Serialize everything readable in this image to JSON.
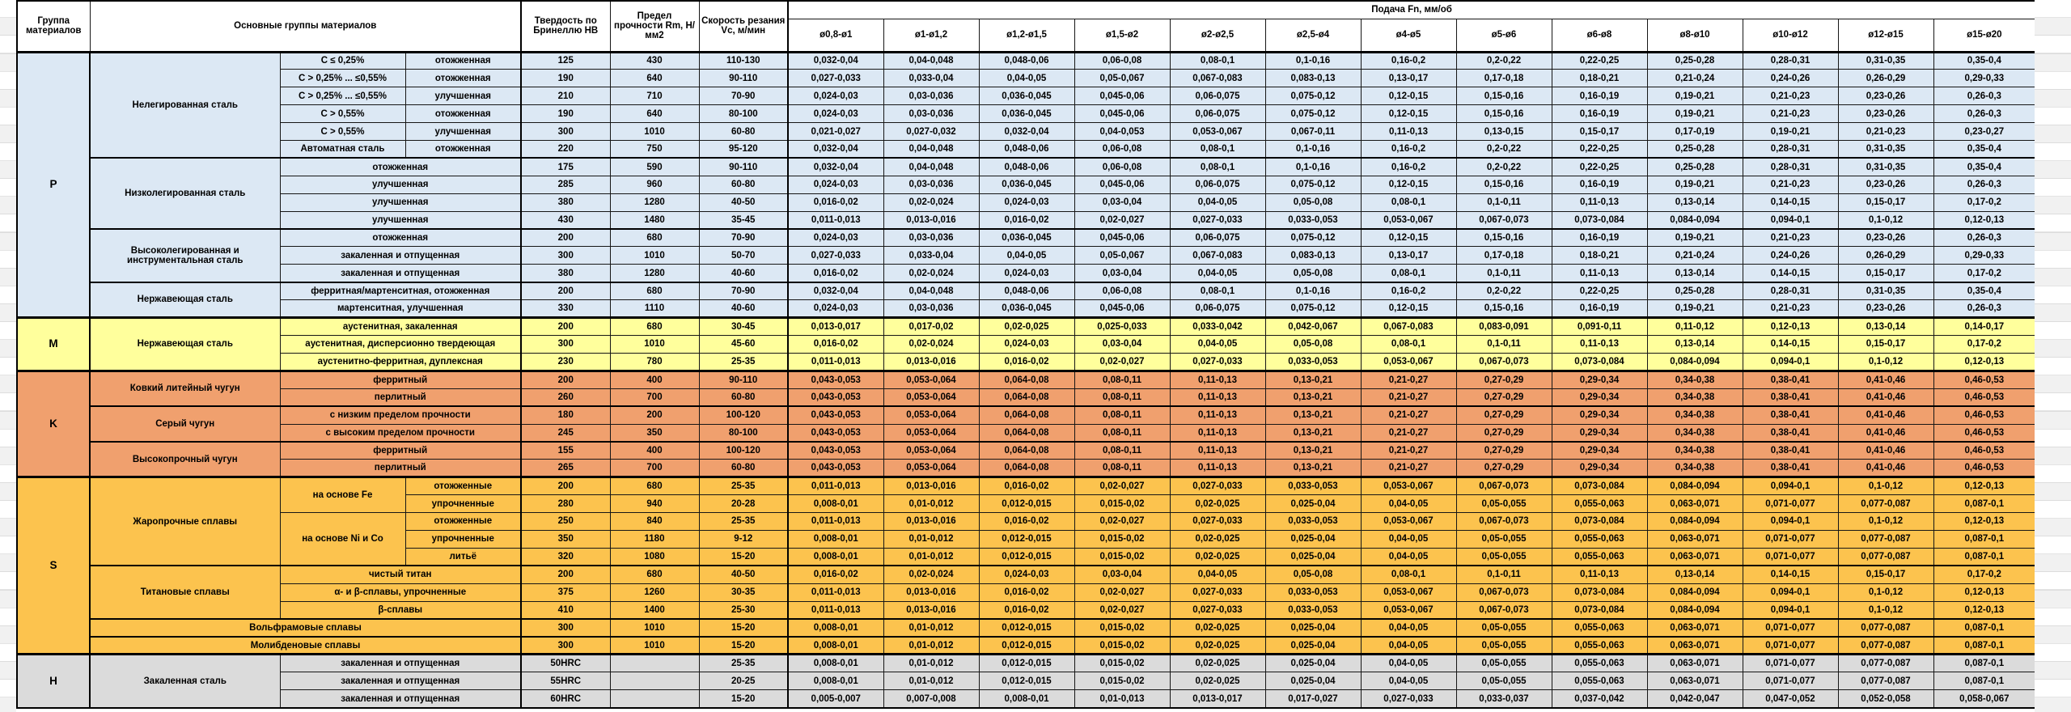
{
  "header": {
    "col_group": "Группа материалов",
    "col_main": "Основные группы материалов",
    "col_hardness": "Твердость по Бринеллю НВ",
    "col_strength": "Предел прочности Rm, Н/мм2",
    "col_speed": "Скорость резания Vc, м/мин",
    "feed_title": "Подача Fn, мм/об",
    "feed_cols": [
      "ø0,8-ø1",
      "ø1-ø1,2",
      "ø1,2-ø1,5",
      "ø1,5-ø2",
      "ø2-ø2,5",
      "ø2,5-ø4",
      "ø4-ø5",
      "ø5-ø6",
      "ø6-ø8",
      "ø8-ø10",
      "ø10-ø12",
      "ø12-ø15",
      "ø15-ø20"
    ]
  },
  "colors": {
    "P": "#DCE8F4",
    "M": "#FFFF9C",
    "K": "#F0A06E",
    "S": "#FCC34E",
    "H": "#DBDBDB",
    "grid": "#000000",
    "header_bg": "#FFFFFF"
  },
  "feed_patterns": {
    "A": [
      "0,032-0,04",
      "0,04-0,048",
      "0,048-0,06",
      "0,06-0,08",
      "0,08-0,1",
      "0,1-0,16",
      "0,16-0,2",
      "0,2-0,22",
      "0,22-0,25",
      "0,25-0,28",
      "0,28-0,31",
      "0,31-0,35",
      "0,35-0,4"
    ],
    "B": [
      "0,027-0,033",
      "0,033-0,04",
      "0,04-0,05",
      "0,05-0,067",
      "0,067-0,083",
      "0,083-0,13",
      "0,13-0,17",
      "0,17-0,18",
      "0,18-0,21",
      "0,21-0,24",
      "0,24-0,26",
      "0,26-0,29",
      "0,29-0,33"
    ],
    "C": [
      "0,024-0,03",
      "0,03-0,036",
      "0,036-0,045",
      "0,045-0,06",
      "0,06-0,075",
      "0,075-0,12",
      "0,12-0,15",
      "0,15-0,16",
      "0,16-0,19",
      "0,19-0,21",
      "0,21-0,23",
      "0,23-0,26",
      "0,26-0,3"
    ],
    "D": [
      "0,021-0,027",
      "0,027-0,032",
      "0,032-0,04",
      "0,04-0,053",
      "0,053-0,067",
      "0,067-0,11",
      "0,11-0,13",
      "0,13-0,15",
      "0,15-0,17",
      "0,17-0,19",
      "0,19-0,21",
      "0,21-0,23",
      "0,23-0,27"
    ],
    "E": [
      "0,016-0,02",
      "0,02-0,024",
      "0,024-0,03",
      "0,03-0,04",
      "0,04-0,05",
      "0,05-0,08",
      "0,08-0,1",
      "0,1-0,11",
      "0,11-0,13",
      "0,13-0,14",
      "0,14-0,15",
      "0,15-0,17",
      "0,17-0,2"
    ],
    "F": [
      "0,011-0,013",
      "0,013-0,016",
      "0,016-0,02",
      "0,02-0,027",
      "0,027-0,033",
      "0,033-0,053",
      "0,053-0,067",
      "0,067-0,073",
      "0,073-0,084",
      "0,084-0,094",
      "0,094-0,1",
      "0,1-0,12",
      "0,12-0,13"
    ],
    "G": [
      "0,013-0,017",
      "0,017-0,02",
      "0,02-0,025",
      "0,025-0,033",
      "0,033-0,042",
      "0,042-0,067",
      "0,067-0,083",
      "0,083-0,091",
      "0,091-0,11",
      "0,11-0,12",
      "0,12-0,13",
      "0,13-0,14",
      "0,14-0,17"
    ],
    "K": [
      "0,043-0,053",
      "0,053-0,064",
      "0,064-0,08",
      "0,08-0,11",
      "0,11-0,13",
      "0,13-0,21",
      "0,21-0,27",
      "0,27-0,29",
      "0,29-0,34",
      "0,34-0,38",
      "0,38-0,41",
      "0,41-0,46",
      "0,46-0,53"
    ],
    "S": [
      "0,008-0,01",
      "0,01-0,012",
      "0,012-0,015",
      "0,015-0,02",
      "0,02-0,025",
      "0,025-0,04",
      "0,04-0,05",
      "0,05-0,055",
      "0,055-0,063",
      "0,063-0,071",
      "0,071-0,077",
      "0,077-0,087",
      "0,087-0,1"
    ],
    "Z": [
      "0,005-0,007",
      "0,007-0,008",
      "0,008-0,01",
      "0,01-0,013",
      "0,013-0,017",
      "0,017-0,027",
      "0,027-0,033",
      "0,033-0,037",
      "0,037-0,042",
      "0,042-0,047",
      "0,047-0,052",
      "0,052-0,058",
      "0,058-0,067"
    ]
  },
  "groups": [
    {
      "letter": "P",
      "rows": [
        {
          "sec": true,
          "cells": [
            {
              "t": "Нелегированная сталь",
              "rs": 6
            },
            {
              "t": "С ≤ 0,25%"
            },
            {
              "t": "отожженная"
            }
          ],
          "hb": "125",
          "rm": "430",
          "vc": "110-130",
          "fp": "A"
        },
        {
          "cells": [
            {
              "t": "С > 0,25% ... ≤0,55%"
            },
            {
              "t": "отожженная"
            }
          ],
          "hb": "190",
          "rm": "640",
          "vc": "90-110",
          "fp": "B"
        },
        {
          "cells": [
            {
              "t": "С > 0,25% ... ≤0,55%"
            },
            {
              "t": "улучшенная"
            }
          ],
          "hb": "210",
          "rm": "710",
          "vc": "70-90",
          "fp": "C"
        },
        {
          "cells": [
            {
              "t": "С > 0,55%"
            },
            {
              "t": "отожженная"
            }
          ],
          "hb": "190",
          "rm": "640",
          "vc": "80-100",
          "fp": "C"
        },
        {
          "cells": [
            {
              "t": "С > 0,55%"
            },
            {
              "t": "улучшенная"
            }
          ],
          "hb": "300",
          "rm": "1010",
          "vc": "60-80",
          "fp": "D"
        },
        {
          "cells": [
            {
              "t": "Автоматная сталь"
            },
            {
              "t": "отожженная"
            }
          ],
          "hb": "220",
          "rm": "750",
          "vc": "95-120",
          "fp": "A"
        },
        {
          "sec": true,
          "cells": [
            {
              "t": "Низколегированная сталь",
              "rs": 4
            },
            {
              "t": "отожженная",
              "cs": 2
            }
          ],
          "hb": "175",
          "rm": "590",
          "vc": "90-110",
          "fp": "A"
        },
        {
          "cells": [
            {
              "t": "улучшенная",
              "cs": 2
            }
          ],
          "hb": "285",
          "rm": "960",
          "vc": "60-80",
          "fp": "C"
        },
        {
          "cells": [
            {
              "t": "улучшенная",
              "cs": 2
            }
          ],
          "hb": "380",
          "rm": "1280",
          "vc": "40-50",
          "fp": "E"
        },
        {
          "cells": [
            {
              "t": "улучшенная",
              "cs": 2
            }
          ],
          "hb": "430",
          "rm": "1480",
          "vc": "35-45",
          "fp": "F"
        },
        {
          "sec": true,
          "cells": [
            {
              "t": "Высоколегированная и инструментальная сталь",
              "rs": 3
            },
            {
              "t": "отожженная",
              "cs": 2
            }
          ],
          "hb": "200",
          "rm": "680",
          "vc": "70-90",
          "fp": "C"
        },
        {
          "cells": [
            {
              "t": "закаленная и отпущенная",
              "cs": 2
            }
          ],
          "hb": "300",
          "rm": "1010",
          "vc": "50-70",
          "fp": "B"
        },
        {
          "cells": [
            {
              "t": "закаленная и отпущенная",
              "cs": 2
            }
          ],
          "hb": "380",
          "rm": "1280",
          "vc": "40-60",
          "fp": "E"
        },
        {
          "sec": true,
          "cells": [
            {
              "t": "Нержавеющая сталь",
              "rs": 2
            },
            {
              "t": "ферритная/мартенситная, отожженная",
              "cs": 2
            }
          ],
          "hb": "200",
          "rm": "680",
          "vc": "70-90",
          "fp": "A"
        },
        {
          "cells": [
            {
              "t": "мартенситная, улучшенная",
              "cs": 2
            }
          ],
          "hb": "330",
          "rm": "1110",
          "vc": "40-60",
          "fp": "C"
        }
      ]
    },
    {
      "letter": "M",
      "rows": [
        {
          "sec": true,
          "cells": [
            {
              "t": "Нержавеющая сталь",
              "rs": 3
            },
            {
              "t": "аустенитная, закаленная",
              "cs": 2
            }
          ],
          "hb": "200",
          "rm": "680",
          "vc": "30-45",
          "fp": "G"
        },
        {
          "cells": [
            {
              "t": "аустенитная, дисперсионно твердеющая",
              "cs": 2
            }
          ],
          "hb": "300",
          "rm": "1010",
          "vc": "45-60",
          "fp": "E"
        },
        {
          "cells": [
            {
              "t": "аустенитно-ферритная, дуплексная",
              "cs": 2
            }
          ],
          "hb": "230",
          "rm": "780",
          "vc": "25-35",
          "fp": "F"
        }
      ]
    },
    {
      "letter": "K",
      "rows": [
        {
          "sec": true,
          "cells": [
            {
              "t": "Ковкий литейный чугун",
              "rs": 2
            },
            {
              "t": "ферритный",
              "cs": 2
            }
          ],
          "hb": "200",
          "rm": "400",
          "vc": "90-110",
          "fp": "K"
        },
        {
          "cells": [
            {
              "t": "перлитный",
              "cs": 2
            }
          ],
          "hb": "260",
          "rm": "700",
          "vc": "60-80",
          "fp": "K"
        },
        {
          "sec": true,
          "cells": [
            {
              "t": "Серый чугун",
              "rs": 2
            },
            {
              "t": "с низким пределом прочности",
              "cs": 2
            }
          ],
          "hb": "180",
          "rm": "200",
          "vc": "100-120",
          "fp": "K"
        },
        {
          "cells": [
            {
              "t": "с высоким пределом прочности",
              "cs": 2
            }
          ],
          "hb": "245",
          "rm": "350",
          "vc": "80-100",
          "fp": "K"
        },
        {
          "sec": true,
          "cells": [
            {
              "t": "Высокопрочный чугун",
              "rs": 2
            },
            {
              "t": "ферритный",
              "cs": 2
            }
          ],
          "hb": "155",
          "rm": "400",
          "vc": "100-120",
          "fp": "K"
        },
        {
          "cells": [
            {
              "t": "перлитный",
              "cs": 2
            }
          ],
          "hb": "265",
          "rm": "700",
          "vc": "60-80",
          "fp": "K"
        }
      ]
    },
    {
      "letter": "S",
      "rows": [
        {
          "sec": true,
          "cells": [
            {
              "t": "Жаропрочные сплавы",
              "rs": 5
            },
            {
              "t": "на основе Fe",
              "rs": 2
            },
            {
              "t": "отожженные"
            }
          ],
          "hb": "200",
          "rm": "680",
          "vc": "25-35",
          "fp": "F"
        },
        {
          "cells": [
            {
              "t": "упрочненные"
            }
          ],
          "hb": "280",
          "rm": "940",
          "vc": "20-28",
          "fp": "S"
        },
        {
          "cells": [
            {
              "t": "на основе Ni и Co",
              "rs": 3
            },
            {
              "t": "отожженные"
            }
          ],
          "hb": "250",
          "rm": "840",
          "vc": "25-35",
          "fp": "F"
        },
        {
          "cells": [
            {
              "t": "упрочненные"
            }
          ],
          "hb": "350",
          "rm": "1180",
          "vc": "9-12",
          "fp": "S"
        },
        {
          "cells": [
            {
              "t": "литьё"
            }
          ],
          "hb": "320",
          "rm": "1080",
          "vc": "15-20",
          "fp": "S"
        },
        {
          "sec": true,
          "cells": [
            {
              "t": "Титановые сплавы",
              "rs": 3
            },
            {
              "t": "чистый титан",
              "cs": 2
            }
          ],
          "hb": "200",
          "rm": "680",
          "vc": "40-50",
          "fp": "E"
        },
        {
          "cells": [
            {
              "t": "α- и β-сплавы, упрочненные",
              "cs": 2
            }
          ],
          "hb": "375",
          "rm": "1260",
          "vc": "30-35",
          "fp": "F"
        },
        {
          "cells": [
            {
              "t": "β-сплавы",
              "cs": 2
            }
          ],
          "hb": "410",
          "rm": "1400",
          "vc": "25-30",
          "fp": "F"
        },
        {
          "sec": true,
          "cells": [
            {
              "t": "Вольфрамовые сплавы",
              "cs": 3
            }
          ],
          "hb": "300",
          "rm": "1010",
          "vc": "15-20",
          "fp": "S"
        },
        {
          "sec": true,
          "cells": [
            {
              "t": "Молибденовые сплавы",
              "cs": 3
            }
          ],
          "hb": "300",
          "rm": "1010",
          "vc": "15-20",
          "fp": "S"
        }
      ]
    },
    {
      "letter": "H",
      "rows": [
        {
          "sec": true,
          "cells": [
            {
              "t": "Закаленная сталь",
              "rs": 3
            },
            {
              "t": "закаленная и отпущенная",
              "cs": 2
            }
          ],
          "hb": "50HRC",
          "rm": "",
          "vc": "25-35",
          "fp": "S"
        },
        {
          "cells": [
            {
              "t": "закаленная и отпущенная",
              "cs": 2
            }
          ],
          "hb": "55HRC",
          "rm": "",
          "vc": "20-25",
          "fp": "S"
        },
        {
          "cells": [
            {
              "t": "закаленная и отпущенная",
              "cs": 2
            }
          ],
          "hb": "60HRC",
          "rm": "",
          "vc": "15-20",
          "fp": "Z"
        }
      ]
    }
  ]
}
